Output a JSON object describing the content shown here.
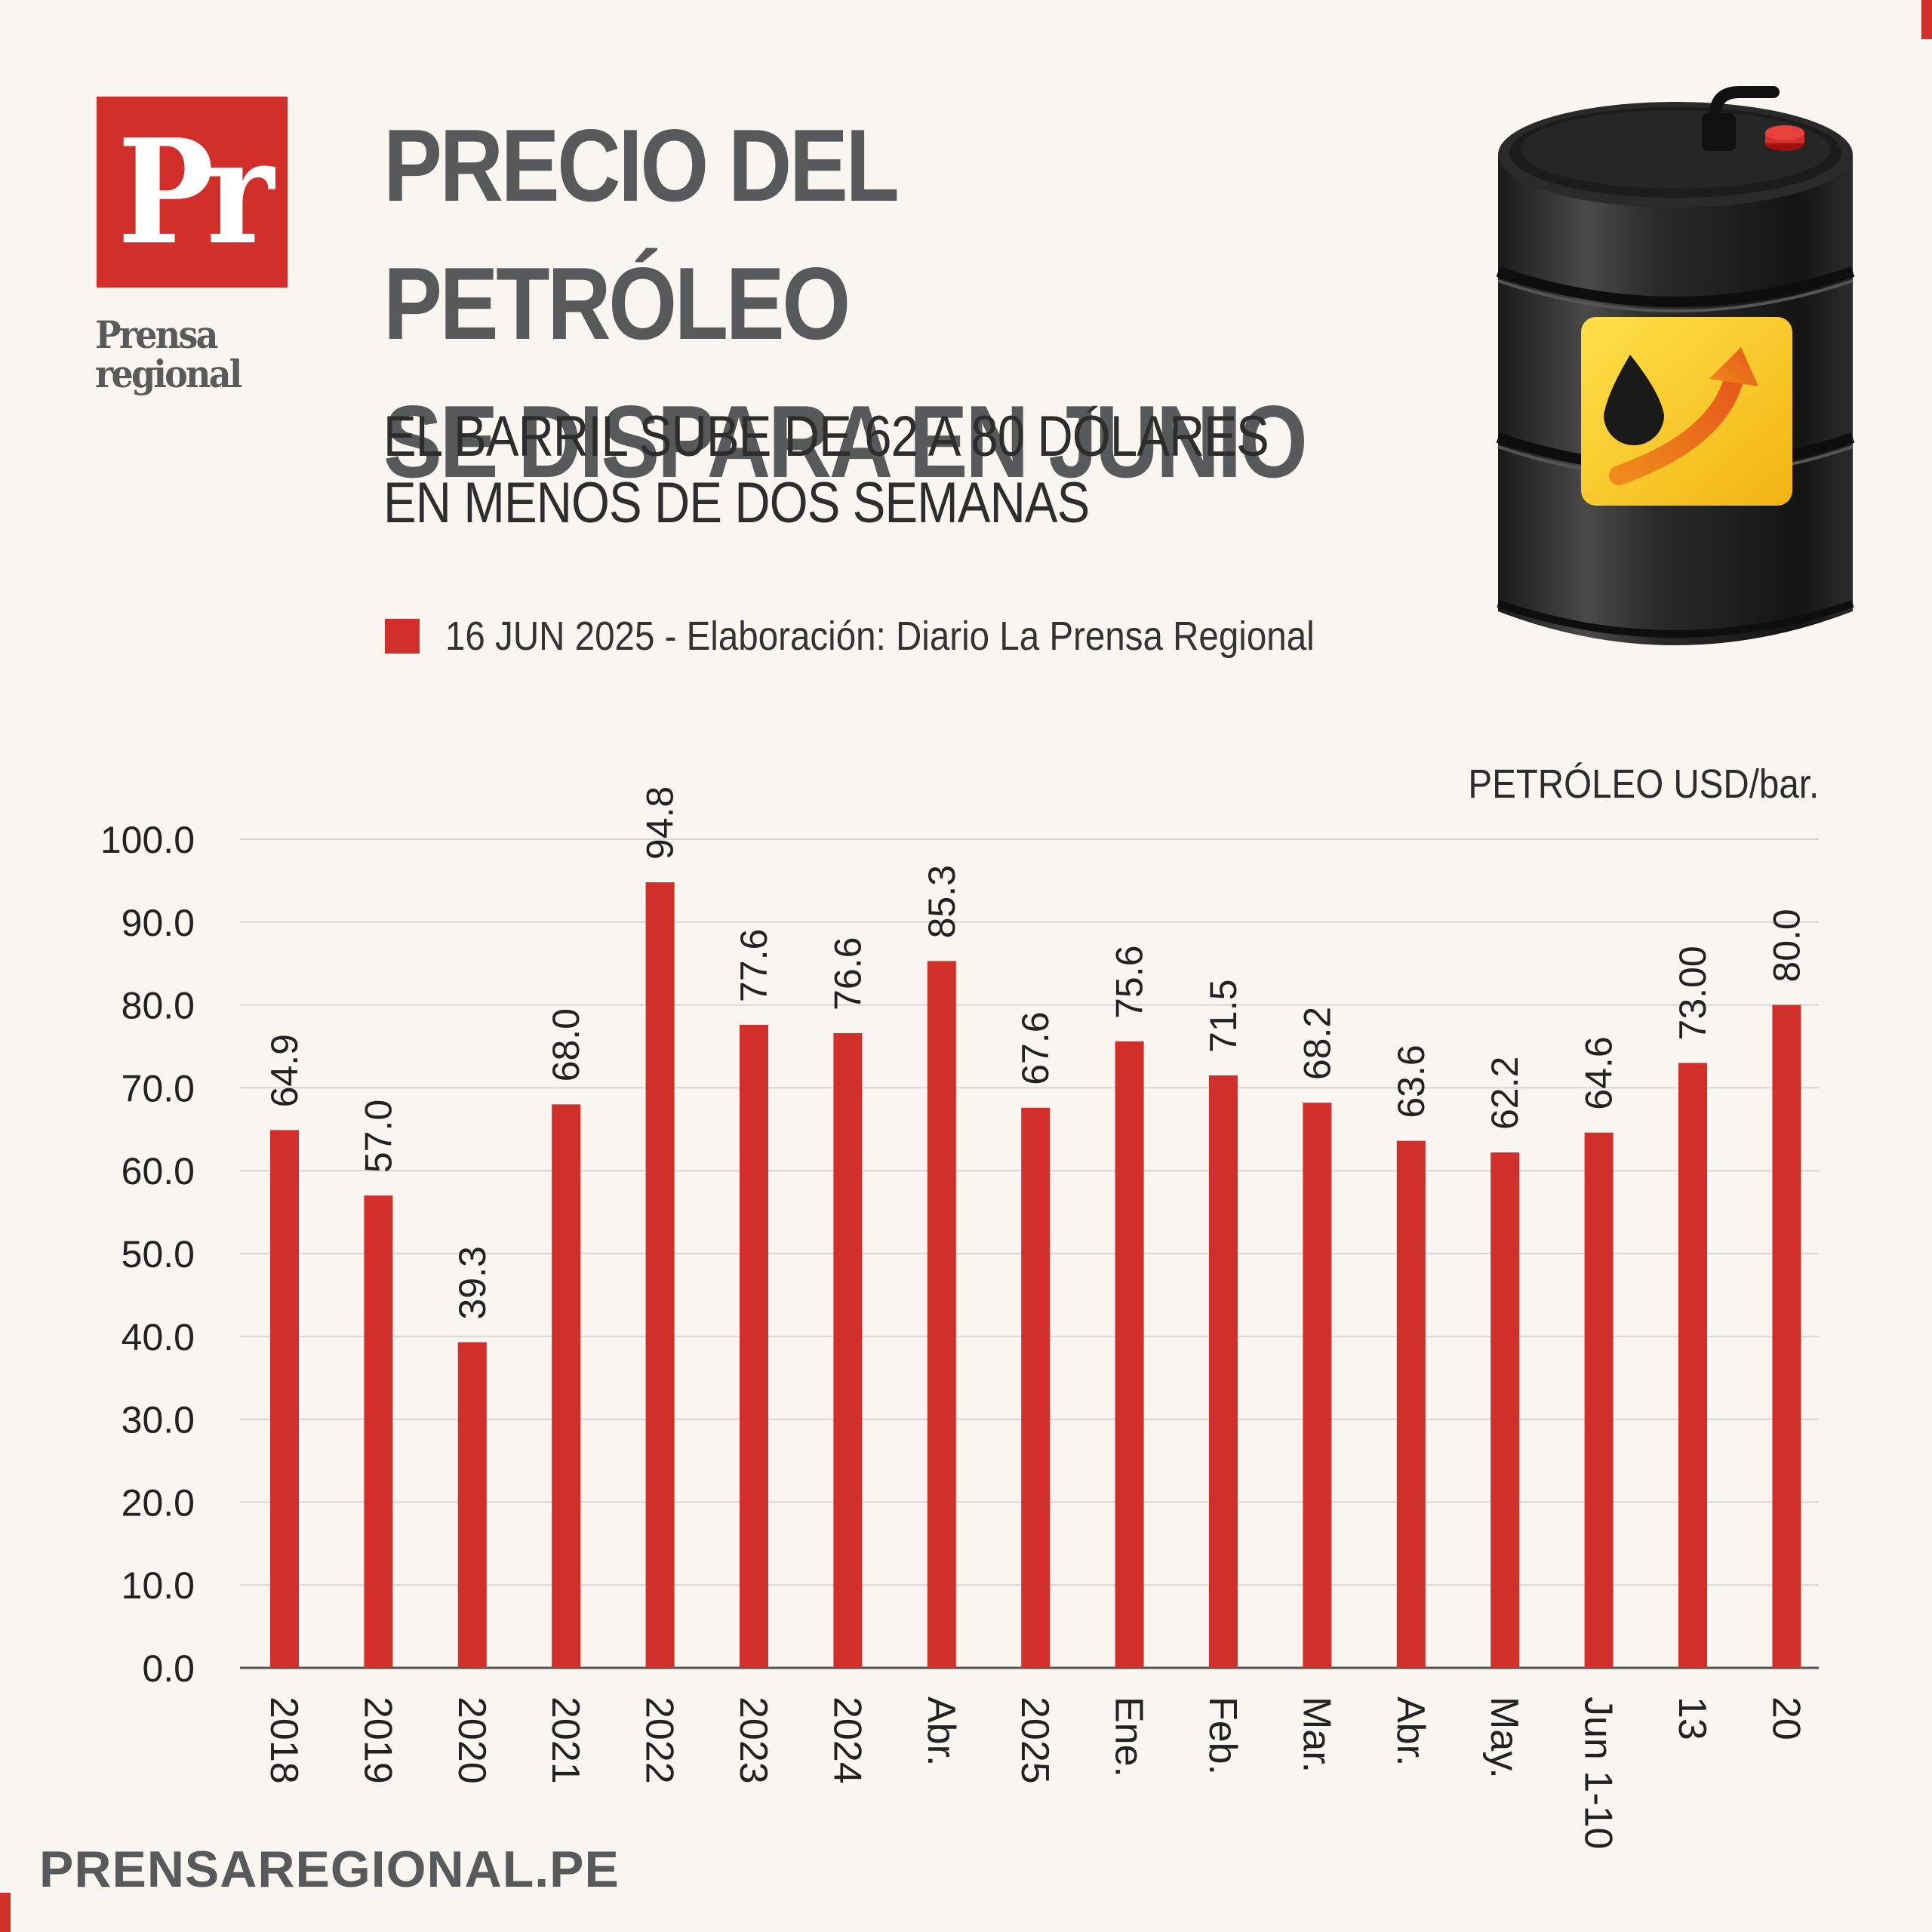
{
  "header": {
    "logo_mark": "Pr",
    "logo_line1": "Prensa",
    "logo_line2": "regional",
    "title": "PRECIO DEL PETRÓLEO\nSE DISPARA EN JUNIO",
    "subtitle": "EL BARRIL SUBE DE 62 A 80 DÓLARES\nEN MENOS DE DOS SEMANAS",
    "source": "16 JUN 2025 -  Elaboración: Diario La Prensa Regional"
  },
  "footer": {
    "site": "PRENSAREGIONAL.PE"
  },
  "colors": {
    "bar": "#d32f2a",
    "background": "#f9f5f1",
    "title": "#58595b",
    "grid": "#d6d6d6"
  },
  "chart_data": {
    "type": "bar",
    "unit_label": "PETRÓLEO USD/bar.",
    "categories": [
      "2018",
      "2019",
      "2020",
      "2021",
      "2022",
      "2023",
      "2024",
      "Abr.",
      "2025",
      "Ene.",
      "Feb.",
      "Mar.",
      "Abr.",
      "May.",
      "Jun 1-10",
      "13",
      "20"
    ],
    "values": [
      64.9,
      57.0,
      39.3,
      68.0,
      94.8,
      77.6,
      76.6,
      85.3,
      67.6,
      75.6,
      71.5,
      68.2,
      63.6,
      62.2,
      64.6,
      73.0,
      80.0
    ],
    "value_labels": [
      "64.9",
      "57.0",
      "39.3",
      "68.0",
      "94.8",
      "77.6",
      "76.6",
      "85.3",
      "67.6",
      "75.6",
      "71.5",
      "68.2",
      "63.6",
      "62.2",
      "64.6",
      "73.00",
      "80.0"
    ],
    "y_ticks": [
      "0.0",
      "10.0",
      "20.0",
      "30.0",
      "40.0",
      "50.0",
      "60.0",
      "70.0",
      "80.0",
      "90.0",
      "100.0"
    ],
    "ylim": [
      0,
      100
    ],
    "grid": true
  }
}
